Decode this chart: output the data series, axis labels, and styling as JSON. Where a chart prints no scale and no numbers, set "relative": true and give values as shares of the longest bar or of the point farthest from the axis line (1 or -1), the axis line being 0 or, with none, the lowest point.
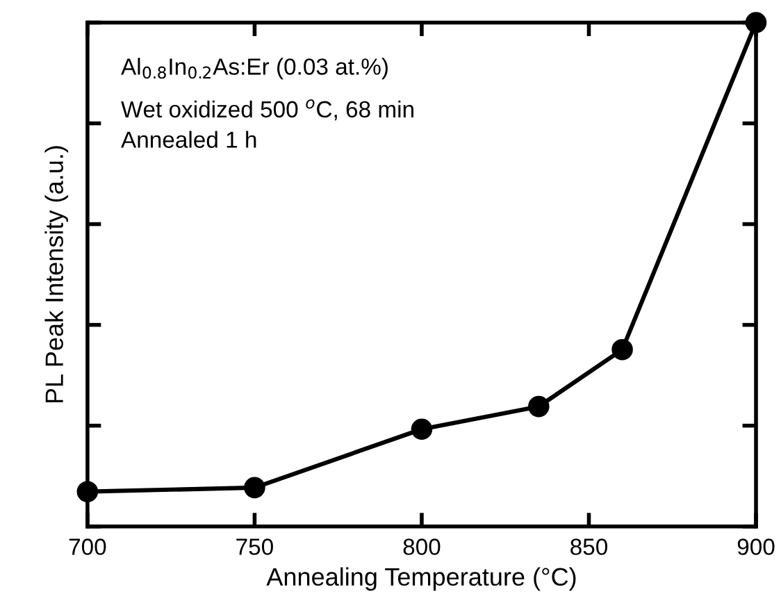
{
  "chart_data": {
    "type": "line",
    "xlabel": "Annealing Temperature (°C)",
    "ylabel": "PL Peak Intensity (a.u.)",
    "x": [
      700,
      750,
      800,
      835,
      860,
      900
    ],
    "series": [
      {
        "color": "#000000",
        "values": [
          0.069,
          0.077,
          0.193,
          0.238,
          0.351,
          1.0
        ]
      }
    ],
    "relative": true,
    "xlim": [
      700,
      900
    ],
    "xticks": [
      700,
      750,
      800,
      850,
      900
    ],
    "marker": "circle",
    "line_style": "solid",
    "grid": false,
    "annotations": [
      "Al$_{0.8}$In$_{0.2}$As:Er (0.03 at.%)",
      "Wet oxidized 500 $^{o}$C, 68 min",
      "Annealed 1 h"
    ]
  }
}
